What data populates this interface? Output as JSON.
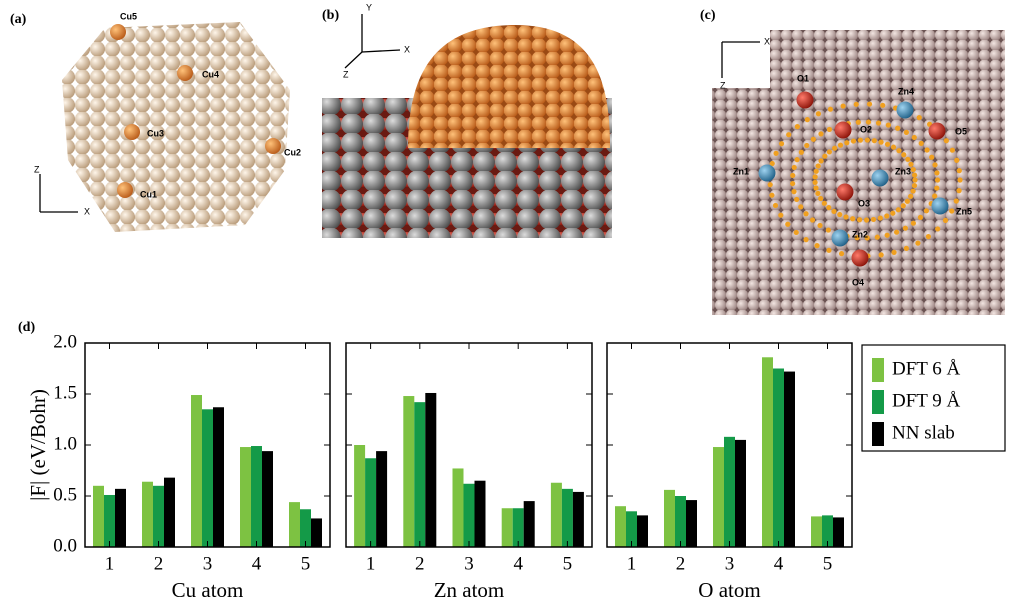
{
  "figure": {
    "panels": [
      {
        "label": "(a)",
        "atoms": [
          "Cu5",
          "Cu4",
          "Cu3",
          "Cu2",
          "Cu1"
        ],
        "axes": [
          "Z",
          "X"
        ]
      },
      {
        "label": "(b)",
        "atoms": [],
        "axes": [
          "Y",
          "X",
          "Z"
        ]
      },
      {
        "label": "(c)",
        "atoms": [
          "O1",
          "Zn4",
          "O2",
          "O5",
          "Zn1",
          "Zn3",
          "O3",
          "Zn5",
          "Zn2",
          "O4"
        ],
        "axes": [
          "X",
          "Z"
        ]
      }
    ],
    "chart_label": "(d)"
  },
  "chart_data": [
    {
      "type": "bar",
      "ylabel": "|F| (eV/Bohr)",
      "xlabel": "Cu atom",
      "categories": [
        "1",
        "2",
        "3",
        "4",
        "5"
      ],
      "series": [
        {
          "name": "DFT 6 Å",
          "color": "#7dc242",
          "values": [
            0.6,
            0.64,
            1.49,
            0.98,
            0.44
          ]
        },
        {
          "name": "DFT 9 Å",
          "color": "#149a48",
          "values": [
            0.51,
            0.6,
            1.35,
            0.99,
            0.37
          ]
        },
        {
          "name": "NN slab",
          "color": "#000000",
          "values": [
            0.57,
            0.68,
            1.37,
            0.94,
            0.28
          ]
        }
      ],
      "ylim": [
        0,
        2.0
      ],
      "yticks": [
        {
          "value": 0,
          "label": "0.0"
        },
        0.5,
        {
          "value": 1,
          "label": "1.0"
        },
        1.5,
        {
          "value": 2,
          "label": "2.0"
        }
      ],
      "legend": "outside-right"
    },
    {
      "type": "bar",
      "xlabel": "Zn atom",
      "categories": [
        "1",
        "2",
        "3",
        "4",
        "5"
      ],
      "series": [
        {
          "name": "DFT 6 Å",
          "color": "#7dc242",
          "values": [
            1.0,
            1.48,
            0.77,
            0.38,
            0.63
          ]
        },
        {
          "name": "DFT 9 Å",
          "color": "#149a48",
          "values": [
            0.87,
            1.42,
            0.62,
            0.38,
            0.57
          ]
        },
        {
          "name": "NN slab",
          "color": "#000000",
          "values": [
            0.94,
            1.51,
            0.65,
            0.45,
            0.54
          ]
        }
      ],
      "ylim": [
        0,
        2.0
      ],
      "yticks": [
        0,
        0.5,
        1,
        1.5,
        2
      ]
    },
    {
      "type": "bar",
      "xlabel": "O atom",
      "categories": [
        "1",
        "2",
        "3",
        "4",
        "5"
      ],
      "series": [
        {
          "name": "DFT 6 Å",
          "color": "#7dc242",
          "values": [
            0.4,
            0.56,
            0.98,
            1.86,
            0.3
          ]
        },
        {
          "name": "DFT 9 Å",
          "color": "#149a48",
          "values": [
            0.35,
            0.5,
            1.08,
            1.75,
            0.31
          ]
        },
        {
          "name": "NN slab",
          "color": "#000000",
          "values": [
            0.31,
            0.46,
            1.05,
            1.72,
            0.29
          ]
        }
      ],
      "ylim": [
        0,
        2.0
      ],
      "yticks": [
        0,
        0.5,
        1,
        1.5,
        2
      ]
    }
  ]
}
